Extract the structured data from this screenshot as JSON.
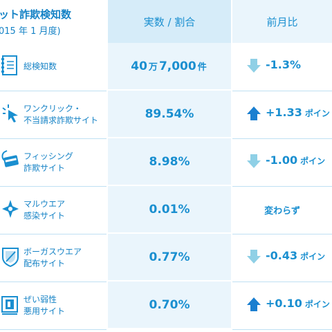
{
  "header": {
    "title": "ット詐欺検知数",
    "period": "015 年 1 月度)",
    "col_value": "実数 / 割合",
    "col_change": "前月比"
  },
  "colors": {
    "text_blue": "#1a8fd0",
    "header_bg": "#d6ecf9",
    "cell_bg": "#eaf5fc",
    "arrow_down": "#8fd0e6",
    "arrow_up": "#1a7fd0"
  },
  "rows": [
    {
      "icon": "document-icon",
      "label_lines": [
        "総検知数"
      ],
      "value": {
        "num1": "40",
        "unit1": "万",
        "num2": "7,000",
        "unit2": "件"
      },
      "change": {
        "direction": "down",
        "text": "-1.3%",
        "unit": ""
      }
    },
    {
      "icon": "cursor-click-icon",
      "label_lines": [
        "ワンクリック・",
        "不当請求詐欺サイト"
      ],
      "value": {
        "text": "89.54%"
      },
      "change": {
        "direction": "up",
        "text": "+1.33",
        "unit": "ポイン"
      }
    },
    {
      "icon": "fishing-card-icon",
      "label_lines": [
        "フィッシング",
        "詐欺サイト"
      ],
      "value": {
        "text": "8.98%"
      },
      "change": {
        "direction": "down",
        "text": "-1.00",
        "unit": "ポイン"
      }
    },
    {
      "icon": "malware-virus-icon",
      "label_lines": [
        "マルウエア",
        "感染サイト"
      ],
      "value": {
        "text": "0.01%"
      },
      "change": {
        "direction": "none",
        "text": "変わらず",
        "unit": ""
      }
    },
    {
      "icon": "shield-icon",
      "label_lines": [
        "ボーガスウエア",
        "配布サイト"
      ],
      "value": {
        "text": "0.77%"
      },
      "change": {
        "direction": "down",
        "text": "-0.43",
        "unit": "ポイン"
      }
    },
    {
      "icon": "vulnerable-monitor-icon",
      "label_lines": [
        "ぜい弱性",
        "悪用サイト"
      ],
      "value": {
        "text": "0.70%"
      },
      "change": {
        "direction": "up",
        "text": "+0.10",
        "unit": "ポイン"
      }
    }
  ]
}
